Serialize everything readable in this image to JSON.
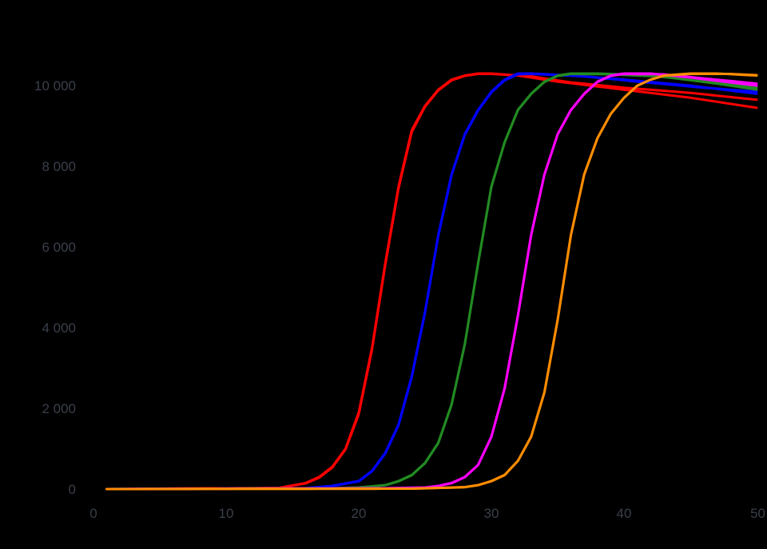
{
  "chart_data": {
    "type": "line",
    "title": "",
    "xlabel": "",
    "ylabel": "",
    "xlim": [
      0,
      50
    ],
    "ylim": [
      0,
      10300
    ],
    "grid": false,
    "x_ticks": [
      0,
      10,
      20,
      30,
      40,
      50
    ],
    "y_ticks": [
      0,
      2000,
      4000,
      6000,
      8000,
      10000
    ],
    "x_tick_labels": [
      "0",
      "10",
      "20",
      "30",
      "40",
      "50"
    ],
    "y_tick_labels": [
      "0",
      "2 000",
      "4 000",
      "6 000",
      "8 000",
      "10 000"
    ],
    "x_start": 1,
    "x_end": 50,
    "series": [
      {
        "color": "#ff0000",
        "points": [
          [
            1,
            0
          ],
          [
            14,
            30
          ],
          [
            16,
            150
          ],
          [
            17,
            300
          ],
          [
            18,
            550
          ],
          [
            19,
            1000
          ],
          [
            20,
            1900
          ],
          [
            21,
            3500
          ],
          [
            22,
            5600
          ],
          [
            23,
            7500
          ],
          [
            24,
            8900
          ],
          [
            25,
            9500
          ],
          [
            26,
            9900
          ],
          [
            27,
            10150
          ],
          [
            28,
            10250
          ],
          [
            29,
            10300
          ],
          [
            30,
            10300
          ],
          [
            32,
            10250
          ],
          [
            35,
            10100
          ],
          [
            40,
            9900
          ],
          [
            45,
            9700
          ],
          [
            50,
            9450
          ]
        ]
      },
      {
        "color": "#ff0000",
        "points": [
          [
            1,
            0
          ],
          [
            14,
            30
          ],
          [
            16,
            140
          ],
          [
            17,
            280
          ],
          [
            18,
            530
          ],
          [
            19,
            980
          ],
          [
            20,
            1850
          ],
          [
            21,
            3450
          ],
          [
            22,
            5550
          ],
          [
            23,
            7450
          ],
          [
            24,
            8850
          ],
          [
            25,
            9480
          ],
          [
            26,
            9880
          ],
          [
            27,
            10130
          ],
          [
            28,
            10240
          ],
          [
            29,
            10290
          ],
          [
            30,
            10290
          ],
          [
            33,
            10230
          ],
          [
            36,
            10080
          ],
          [
            40,
            9950
          ],
          [
            45,
            9820
          ],
          [
            50,
            9650
          ]
        ]
      },
      {
        "color": "#0000ff",
        "points": [
          [
            1,
            0
          ],
          [
            16,
            20
          ],
          [
            18,
            80
          ],
          [
            20,
            200
          ],
          [
            21,
            450
          ],
          [
            22,
            900
          ],
          [
            23,
            1600
          ],
          [
            24,
            2800
          ],
          [
            25,
            4400
          ],
          [
            26,
            6300
          ],
          [
            27,
            7800
          ],
          [
            28,
            8800
          ],
          [
            29,
            9400
          ],
          [
            30,
            9850
          ],
          [
            31,
            10150
          ],
          [
            32,
            10300
          ],
          [
            33,
            10300
          ],
          [
            36,
            10250
          ],
          [
            40,
            10150
          ],
          [
            45,
            10000
          ],
          [
            50,
            9800
          ]
        ]
      },
      {
        "color": "#0000ff",
        "points": [
          [
            1,
            0
          ],
          [
            16,
            20
          ],
          [
            18,
            75
          ],
          [
            20,
            190
          ],
          [
            21,
            440
          ],
          [
            22,
            880
          ],
          [
            23,
            1580
          ],
          [
            24,
            2780
          ],
          [
            25,
            4380
          ],
          [
            26,
            6280
          ],
          [
            27,
            7780
          ],
          [
            28,
            8780
          ],
          [
            29,
            9380
          ],
          [
            30,
            9830
          ],
          [
            31,
            10130
          ],
          [
            32,
            10280
          ],
          [
            33,
            10290
          ],
          [
            37,
            10230
          ],
          [
            41,
            10100
          ],
          [
            46,
            9950
          ],
          [
            50,
            9850
          ]
        ]
      },
      {
        "color": "#228b22",
        "points": [
          [
            1,
            0
          ],
          [
            18,
            20
          ],
          [
            20,
            40
          ],
          [
            22,
            100
          ],
          [
            23,
            200
          ],
          [
            24,
            350
          ],
          [
            25,
            650
          ],
          [
            26,
            1150
          ],
          [
            27,
            2100
          ],
          [
            28,
            3600
          ],
          [
            29,
            5600
          ],
          [
            30,
            7500
          ],
          [
            31,
            8600
          ],
          [
            32,
            9400
          ],
          [
            33,
            9800
          ],
          [
            34,
            10100
          ],
          [
            35,
            10250
          ],
          [
            36,
            10300
          ],
          [
            38,
            10300
          ],
          [
            42,
            10250
          ],
          [
            46,
            10100
          ],
          [
            50,
            9950
          ]
        ]
      },
      {
        "color": "#228b22",
        "points": [
          [
            1,
            0
          ],
          [
            18,
            20
          ],
          [
            20,
            40
          ],
          [
            22,
            95
          ],
          [
            23,
            190
          ],
          [
            24,
            340
          ],
          [
            25,
            640
          ],
          [
            26,
            1140
          ],
          [
            27,
            2090
          ],
          [
            28,
            3590
          ],
          [
            29,
            5590
          ],
          [
            30,
            7490
          ],
          [
            31,
            8590
          ],
          [
            32,
            9390
          ],
          [
            33,
            9790
          ],
          [
            34,
            10090
          ],
          [
            35,
            10240
          ],
          [
            36,
            10290
          ],
          [
            39,
            10280
          ],
          [
            43,
            10220
          ],
          [
            47,
            10050
          ],
          [
            50,
            9900
          ]
        ]
      },
      {
        "color": "#ff00ff",
        "points": [
          [
            1,
            0
          ],
          [
            22,
            20
          ],
          [
            25,
            40
          ],
          [
            26,
            80
          ],
          [
            27,
            150
          ],
          [
            28,
            300
          ],
          [
            29,
            600
          ],
          [
            30,
            1300
          ],
          [
            31,
            2500
          ],
          [
            32,
            4300
          ],
          [
            33,
            6300
          ],
          [
            34,
            7800
          ],
          [
            35,
            8800
          ],
          [
            36,
            9400
          ],
          [
            37,
            9800
          ],
          [
            38,
            10100
          ],
          [
            39,
            10250
          ],
          [
            40,
            10300
          ],
          [
            42,
            10300
          ],
          [
            45,
            10200
          ],
          [
            50,
            10000
          ]
        ]
      },
      {
        "color": "#ff00ff",
        "points": [
          [
            1,
            0
          ],
          [
            22,
            20
          ],
          [
            25,
            35
          ],
          [
            26,
            75
          ],
          [
            27,
            145
          ],
          [
            28,
            295
          ],
          [
            29,
            595
          ],
          [
            30,
            1290
          ],
          [
            31,
            2490
          ],
          [
            32,
            4290
          ],
          [
            33,
            6290
          ],
          [
            34,
            7790
          ],
          [
            35,
            8790
          ],
          [
            36,
            9390
          ],
          [
            37,
            9790
          ],
          [
            38,
            10090
          ],
          [
            39,
            10240
          ],
          [
            40,
            10290
          ],
          [
            43,
            10280
          ],
          [
            46,
            10180
          ],
          [
            50,
            10050
          ]
        ]
      },
      {
        "color": "#ff8c00",
        "points": [
          [
            1,
            0
          ],
          [
            24,
            10
          ],
          [
            28,
            50
          ],
          [
            29,
            100
          ],
          [
            30,
            200
          ],
          [
            31,
            350
          ],
          [
            32,
            700
          ],
          [
            33,
            1300
          ],
          [
            34,
            2400
          ],
          [
            35,
            4200
          ],
          [
            36,
            6300
          ],
          [
            37,
            7800
          ],
          [
            38,
            8700
          ],
          [
            39,
            9300
          ],
          [
            40,
            9700
          ],
          [
            41,
            10000
          ],
          [
            42,
            10150
          ],
          [
            43,
            10250
          ],
          [
            45,
            10300
          ],
          [
            47,
            10300
          ],
          [
            50,
            10250
          ]
        ]
      },
      {
        "color": "#ff8c00",
        "points": [
          [
            1,
            0
          ],
          [
            24,
            10
          ],
          [
            28,
            45
          ],
          [
            29,
            95
          ],
          [
            30,
            195
          ],
          [
            31,
            345
          ],
          [
            32,
            695
          ],
          [
            33,
            1295
          ],
          [
            34,
            2395
          ],
          [
            35,
            4195
          ],
          [
            36,
            6295
          ],
          [
            37,
            7795
          ],
          [
            38,
            8695
          ],
          [
            39,
            9295
          ],
          [
            40,
            9695
          ],
          [
            41,
            9995
          ],
          [
            42,
            10145
          ],
          [
            43,
            10245
          ],
          [
            45,
            10290
          ],
          [
            48,
            10290
          ],
          [
            50,
            10260
          ]
        ]
      }
    ]
  }
}
